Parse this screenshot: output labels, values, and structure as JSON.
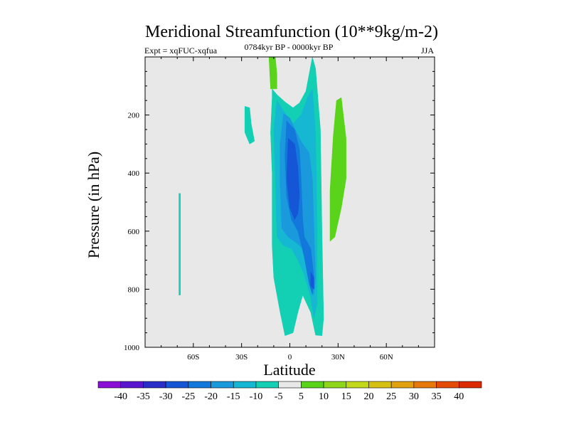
{
  "chart_data": {
    "type": "contour",
    "title": "Meridional Streamfunction (10**9kg/m-2)",
    "left_label": "Expt = xqFUC-xqfua",
    "center_label": "0784kyr BP - 0000kyr BP",
    "right_label": "JJA",
    "xlabel": "Latitude",
    "ylabel": "Pressure (in hPa)",
    "xlim": [
      -90,
      90
    ],
    "ylim": [
      1000,
      0
    ],
    "x_ticks": [
      "60S",
      "30S",
      "0",
      "30N",
      "60N"
    ],
    "x_tick_values": [
      -60,
      -30,
      0,
      30,
      60
    ],
    "y_ticks": [
      "200",
      "400",
      "600",
      "800",
      "1000"
    ],
    "y_tick_values": [
      200,
      400,
      600,
      800,
      1000
    ],
    "background_color": "#e8e8e8",
    "colorbar": {
      "labels": [
        "-40",
        "-35",
        "-30",
        "-25",
        "-20",
        "-15",
        "-10",
        "-5",
        "5",
        "10",
        "15",
        "20",
        "25",
        "30",
        "35",
        "40"
      ],
      "colors": [
        "#8a10d8",
        "#5a16cf",
        "#2a2ec8",
        "#1456d6",
        "#1278dc",
        "#1a99dc",
        "#16b7d3",
        "#13cfb4",
        "#e8e8e8",
        "#5ad41a",
        "#8ed61a",
        "#c2d81a",
        "#d7c014",
        "#e0a010",
        "#e6780c",
        "#e44a08",
        "#dc2a04"
      ]
    },
    "regions": [
      {
        "name": "neg-5-main",
        "level": -5,
        "color": "#13cfb4",
        "points": [
          [
            -11,
            110
          ],
          [
            -8,
            130
          ],
          [
            -3,
            155
          ],
          [
            2,
            175
          ],
          [
            6,
            158
          ],
          [
            10,
            118
          ],
          [
            14,
            0
          ],
          [
            16,
            40
          ],
          [
            19,
            250
          ],
          [
            20,
            600
          ],
          [
            21,
            900
          ],
          [
            20,
            960
          ],
          [
            16,
            958
          ],
          [
            13,
            880
          ],
          [
            8,
            820
          ],
          [
            5,
            880
          ],
          [
            2,
            950
          ],
          [
            -3,
            960
          ],
          [
            -6,
            880
          ],
          [
            -10,
            760
          ],
          [
            -11,
            650
          ],
          [
            -11,
            400
          ],
          [
            -12,
            260
          ],
          [
            -11,
            140
          ]
        ]
      },
      {
        "name": "neg-10-main",
        "level": -10,
        "color": "#16b7d3",
        "points": [
          [
            -8,
            150
          ],
          [
            -4,
            185
          ],
          [
            2,
            230
          ],
          [
            7,
            200
          ],
          [
            11,
            140
          ],
          [
            14,
            110
          ],
          [
            16,
            260
          ],
          [
            17,
            600
          ],
          [
            17,
            850
          ],
          [
            15,
            900
          ],
          [
            13,
            830
          ],
          [
            9,
            750
          ],
          [
            5,
            700
          ],
          [
            1,
            660
          ],
          [
            -4,
            650
          ],
          [
            -8,
            620
          ],
          [
            -9,
            420
          ],
          [
            -10,
            250
          ]
        ]
      },
      {
        "name": "neg-15-main",
        "level": -15,
        "color": "#1a99dc",
        "points": [
          [
            -4,
            195
          ],
          [
            0,
            210
          ],
          [
            5,
            270
          ],
          [
            8,
            300
          ],
          [
            12,
            330
          ],
          [
            14,
            420
          ],
          [
            15,
            600
          ],
          [
            16,
            760
          ],
          [
            15,
            820
          ],
          [
            13,
            800
          ],
          [
            10,
            720
          ],
          [
            8,
            660
          ],
          [
            4,
            640
          ],
          [
            -1,
            620
          ],
          [
            -5,
            590
          ],
          [
            -6,
            440
          ],
          [
            -6,
            300
          ]
        ]
      },
      {
        "name": "neg-20-main",
        "level": -20,
        "color": "#1278dc",
        "points": [
          [
            -2,
            220
          ],
          [
            3,
            250
          ],
          [
            6,
            320
          ],
          [
            7,
            420
          ],
          [
            8,
            560
          ],
          [
            9,
            620
          ],
          [
            13,
            660
          ],
          [
            15,
            760
          ],
          [
            14,
            820
          ],
          [
            12,
            780
          ],
          [
            9,
            690
          ],
          [
            5,
            600
          ],
          [
            1,
            560
          ],
          [
            -2,
            480
          ],
          [
            -3,
            340
          ]
        ]
      },
      {
        "name": "neg-25-main",
        "level": -25,
        "color": "#1456d6",
        "points": [
          [
            -1,
            280
          ],
          [
            3,
            300
          ],
          [
            5,
            380
          ],
          [
            6,
            480
          ],
          [
            5,
            540
          ],
          [
            3,
            560
          ],
          [
            0,
            520
          ],
          [
            -2,
            420
          ]
        ]
      },
      {
        "name": "neg-25-lower",
        "level": -25,
        "color": "#1456d6",
        "points": [
          [
            13,
            740
          ],
          [
            15,
            760
          ],
          [
            15,
            800
          ],
          [
            13,
            790
          ]
        ]
      },
      {
        "name": "neg-5-left",
        "level": -5,
        "color": "#13cfb4",
        "points": [
          [
            -28,
            170
          ],
          [
            -25,
            175
          ],
          [
            -24,
            230
          ],
          [
            -22,
            290
          ],
          [
            -25,
            300
          ],
          [
            -28,
            260
          ]
        ]
      },
      {
        "name": "neg-5-thin",
        "level": -5,
        "color": "#13cfb4",
        "points": [
          [
            -69,
            470
          ],
          [
            -68,
            470
          ],
          [
            -68,
            820
          ],
          [
            -69,
            820
          ]
        ]
      },
      {
        "name": "pos-5-top",
        "level": 5,
        "color": "#5ad41a",
        "points": [
          [
            -13,
            0
          ],
          [
            -9,
            0
          ],
          [
            -8,
            60
          ],
          [
            -8,
            110
          ],
          [
            -12,
            110
          ]
        ]
      },
      {
        "name": "pos-5-right",
        "level": 5,
        "color": "#5ad41a",
        "points": [
          [
            29,
            150
          ],
          [
            32,
            140
          ],
          [
            35,
            280
          ],
          [
            35,
            420
          ],
          [
            32,
            520
          ],
          [
            28,
            620
          ],
          [
            25,
            635
          ],
          [
            25,
            460
          ],
          [
            27,
            270
          ]
        ]
      }
    ]
  }
}
